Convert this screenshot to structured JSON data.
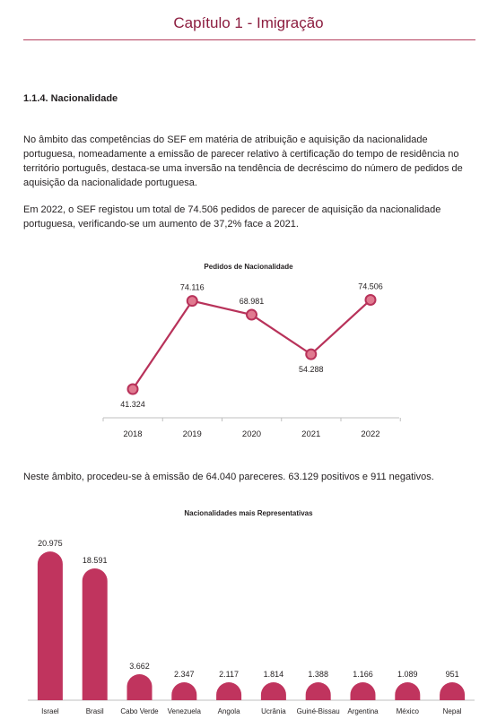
{
  "header": {
    "title": "Capítulo 1 - Imigração"
  },
  "section": {
    "heading": "1.1.4. Nacionalidade"
  },
  "paragraphs": {
    "p1": "No âmbito das competências do SEF em matéria de atribuição e aquisição da nacionalidade portuguesa, nomeadamente a emissão de parecer relativo à certificação do tempo de residência no território português, destaca-se uma inversão na tendência de decréscimo do número de pedidos de aquisição da nacionalidade portuguesa.",
    "p2": "Em 2022, o SEF registou um total de 74.506 pedidos de parecer de aquisição da nacionalidade portuguesa, verificando-se um aumento de 37,2% face a 2021.",
    "p3": "Neste âmbito, procedeu-se à emissão de 64.040 pareceres. 63.129 positivos e 911 negativos."
  },
  "chart_data": [
    {
      "type": "line",
      "title": "Pedidos de Nacionalidade",
      "categories": [
        "2018",
        "2019",
        "2020",
        "2021",
        "2022"
      ],
      "values": [
        41324,
        74116,
        68981,
        54288,
        74506
      ],
      "value_labels": [
        "41.324",
        "74.116",
        "68.981",
        "54.288",
        "74.506"
      ],
      "color": "#b8325a",
      "marker_fill": "#e07a90",
      "grid": false,
      "legend": "none"
    },
    {
      "type": "bar",
      "title": "Nacionalidades mais Representativas",
      "categories": [
        "Israel",
        "Brasil",
        "Cabo Verde",
        "Venezuela",
        "Angola",
        "Ucrânia",
        "Guiné-Bissau",
        "Argentina",
        "México",
        "Nepal"
      ],
      "values": [
        20975,
        18591,
        3662,
        2347,
        2117,
        1814,
        1388,
        1166,
        1089,
        951
      ],
      "value_labels": [
        "20.975",
        "18.591",
        "3.662",
        "2.347",
        "2.117",
        "1.814",
        "1.388",
        "1.166",
        "1.089",
        "951"
      ],
      "color": "#c0345e",
      "grid": false,
      "legend": "none"
    }
  ]
}
